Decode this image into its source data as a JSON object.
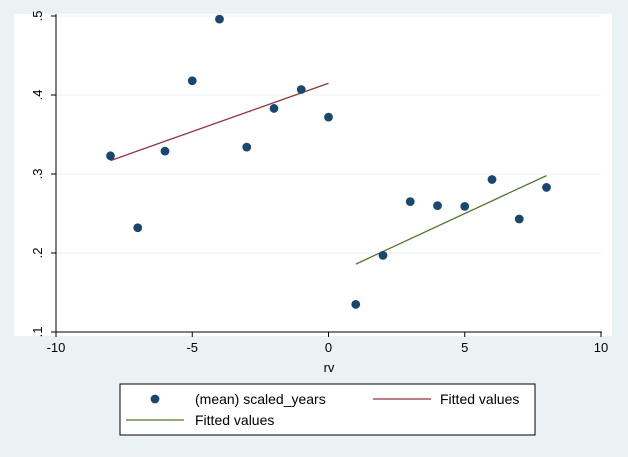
{
  "chart_data": {
    "type": "scatter",
    "xlabel": "rv",
    "ylabel": "",
    "xlim": [
      -10,
      10
    ],
    "ylim": [
      0.1,
      0.5
    ],
    "x_ticks": [
      -10,
      -5,
      0,
      5,
      10
    ],
    "x_tick_labels": [
      "-10",
      "-5",
      "0",
      "5",
      "10"
    ],
    "y_ticks": [
      0.1,
      0.2,
      0.3,
      0.4,
      0.5
    ],
    "y_tick_labels": [
      ".1",
      ".2",
      ".3",
      ".4",
      ".5"
    ],
    "grid": true,
    "legend_position": "bottom",
    "series": [
      {
        "name": "(mean) scaled_years",
        "kind": "scatter",
        "color": "#1a476f",
        "x": [
          -8,
          -7,
          -6,
          -5,
          -4,
          -3,
          -2,
          -1,
          0,
          1,
          2,
          3,
          4,
          5,
          6,
          7,
          8
        ],
        "y": [
          0.323,
          0.232,
          0.329,
          0.418,
          0.496,
          0.334,
          0.383,
          0.407,
          0.372,
          0.135,
          0.197,
          0.265,
          0.26,
          0.259,
          0.293,
          0.243,
          0.283
        ]
      },
      {
        "name": "Fitted values",
        "kind": "line",
        "color": "#90353b",
        "x": [
          -8,
          0
        ],
        "y": [
          0.317,
          0.415
        ]
      },
      {
        "name": "Fitted values",
        "kind": "line",
        "color": "#55752f",
        "x": [
          1,
          8
        ],
        "y": [
          0.186,
          0.298
        ]
      }
    ]
  }
}
